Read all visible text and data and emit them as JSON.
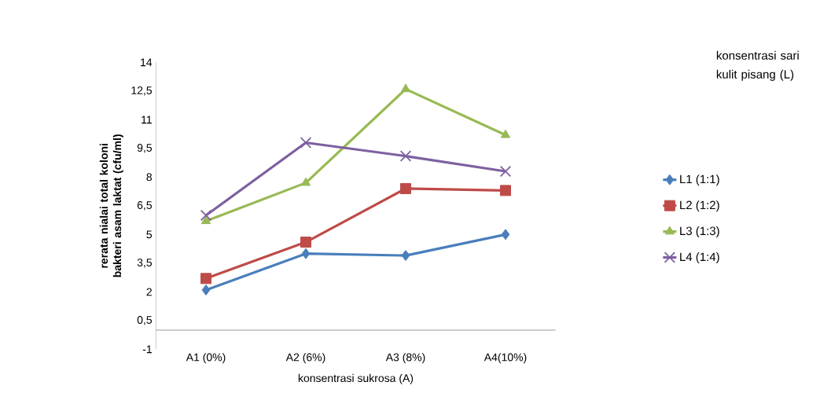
{
  "chart_data": {
    "type": "line",
    "xlabel": "konsentrasi sukrosa (A)",
    "ylabel": "rerata nialai total koloni bakteri asam laktat (cfu/ml)",
    "legend_title": "konsentrasi sari kulit pisang (L)",
    "categories": [
      "A1 (0%)",
      "A2 (6%)",
      "A3 (8%)",
      "A4(10%)"
    ],
    "series": [
      {
        "name": "L1 (1:1)",
        "color": "#4a7ebb",
        "marker": "diamond",
        "values": [
          2.1,
          4.0,
          3.9,
          5.0
        ]
      },
      {
        "name": "L2 (1:2)",
        "color": "#be4b48",
        "marker": "square",
        "values": [
          2.7,
          4.6,
          7.4,
          7.3
        ]
      },
      {
        "name": "L3 (1:3)",
        "color": "#98b954",
        "marker": "triangle",
        "values": [
          5.7,
          7.7,
          12.6,
          10.2
        ]
      },
      {
        "name": "L4 (1:4)",
        "color": "#7d60a0",
        "marker": "cross",
        "values": [
          6.0,
          9.8,
          9.1,
          8.3
        ]
      }
    ],
    "ylim": [
      -1,
      14
    ],
    "yticks": [
      -1,
      {
        "value": 0.5,
        "label": "0,5"
      },
      2,
      {
        "value": 3.5,
        "label": "3,5"
      },
      5,
      {
        "value": 6.5,
        "label": "6,5"
      },
      8,
      {
        "value": 9.5,
        "label": "9,5"
      },
      11,
      {
        "value": 12.5,
        "label": "12,5"
      },
      14
    ],
    "grid": false,
    "legend": "right",
    "line_style": "solid"
  }
}
